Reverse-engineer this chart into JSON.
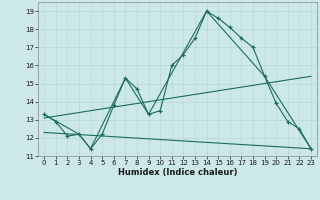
{
  "xlabel": "Humidex (Indice chaleur)",
  "bg_color": "#cde8e8",
  "line_color": "#1a6b60",
  "grid_color": "#b8d8d8",
  "xlim": [
    -0.5,
    23.5
  ],
  "ylim": [
    11,
    19.5
  ],
  "yticks": [
    11,
    12,
    13,
    14,
    15,
    16,
    17,
    18,
    19
  ],
  "xticks": [
    0,
    1,
    2,
    3,
    4,
    5,
    6,
    7,
    8,
    9,
    10,
    11,
    12,
    13,
    14,
    15,
    16,
    17,
    18,
    19,
    20,
    21,
    22,
    23
  ],
  "line1_x": [
    0,
    1,
    2,
    3,
    4,
    5,
    6,
    7,
    8,
    9,
    10,
    11,
    12,
    13,
    14,
    15,
    16,
    17,
    18,
    19,
    20,
    21,
    22,
    23
  ],
  "line1_y": [
    13.3,
    12.9,
    12.1,
    12.2,
    11.4,
    12.2,
    13.8,
    15.3,
    14.7,
    13.3,
    13.5,
    16.0,
    16.6,
    17.5,
    19.0,
    18.6,
    18.1,
    17.5,
    17.0,
    15.4,
    13.9,
    12.9,
    12.5,
    11.4
  ],
  "line2_x": [
    0,
    3,
    4,
    7,
    9,
    14,
    19,
    23
  ],
  "line2_y": [
    13.3,
    12.2,
    11.4,
    15.3,
    13.3,
    19.0,
    15.4,
    11.4
  ],
  "line3_x": [
    0,
    23
  ],
  "line3_y": [
    13.1,
    15.4
  ],
  "line4_x": [
    0,
    23
  ],
  "line4_y": [
    12.3,
    11.4
  ]
}
